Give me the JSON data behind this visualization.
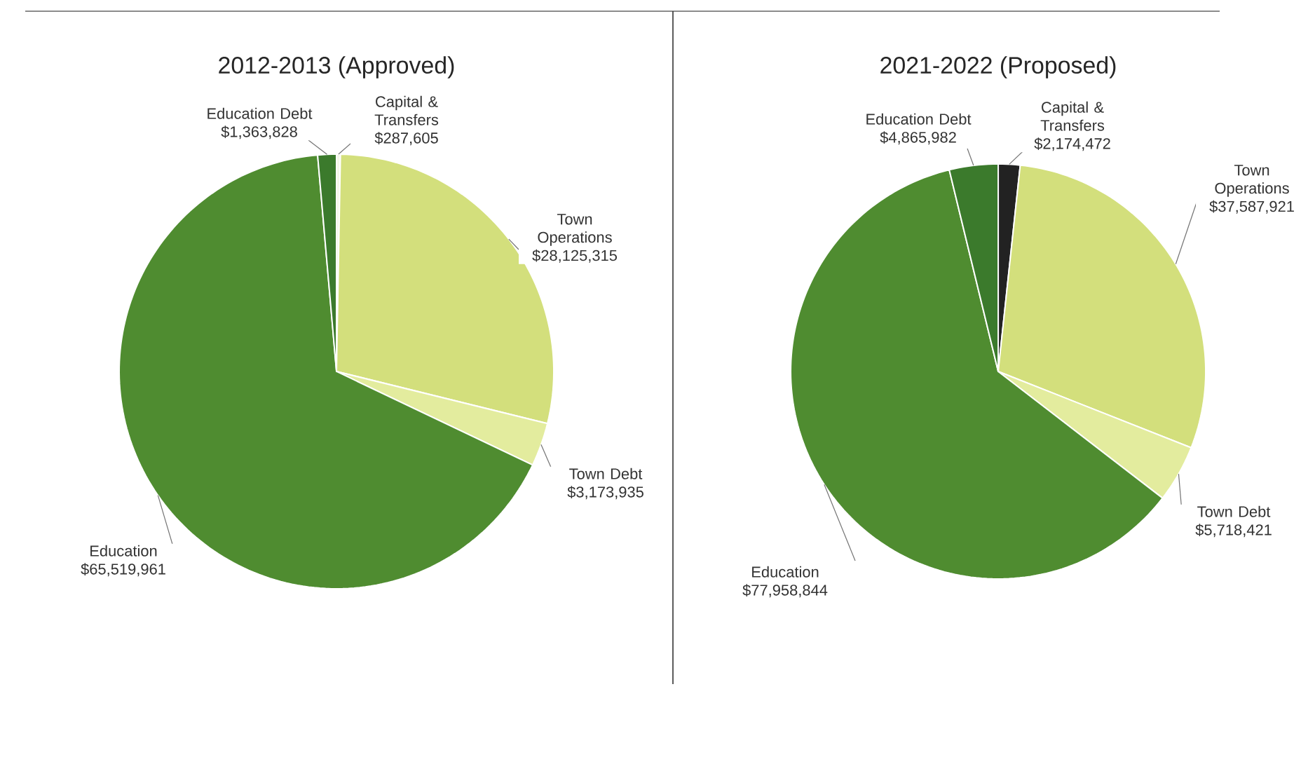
{
  "chart_data": [
    {
      "type": "pie",
      "title": "2012-2013 (Approved)",
      "categories": [
        "Capital & Transfers",
        "Town Operations",
        "Town Debt",
        "Education",
        "Education Debt"
      ],
      "values": [
        287605,
        28125315,
        3173935,
        65519961,
        1363828
      ],
      "value_labels": [
        "$287,605",
        "$28,125,315",
        "$3,173,935",
        "$65,519,961",
        "$1,363,828"
      ],
      "colors": [
        "#f4f6e8",
        "#d3df7c",
        "#e3ec9e",
        "#4f8c30",
        "#3b7a2c"
      ]
    },
    {
      "type": "pie",
      "title": "2021-2022 (Proposed)",
      "categories": [
        "Capital & Transfers",
        "Town Operations",
        "Town Debt",
        "Education",
        "Education Debt"
      ],
      "values": [
        2174472,
        37587921,
        5718421,
        77958844,
        4865982
      ],
      "value_labels": [
        "$2,174,472",
        "$37,587,921",
        "$5,718,421",
        "$77,958,844",
        "$4,865,982"
      ],
      "colors": [
        "#222222",
        "#d3df7c",
        "#e3ec9e",
        "#4f8c30",
        "#3b7a2c"
      ]
    }
  ]
}
